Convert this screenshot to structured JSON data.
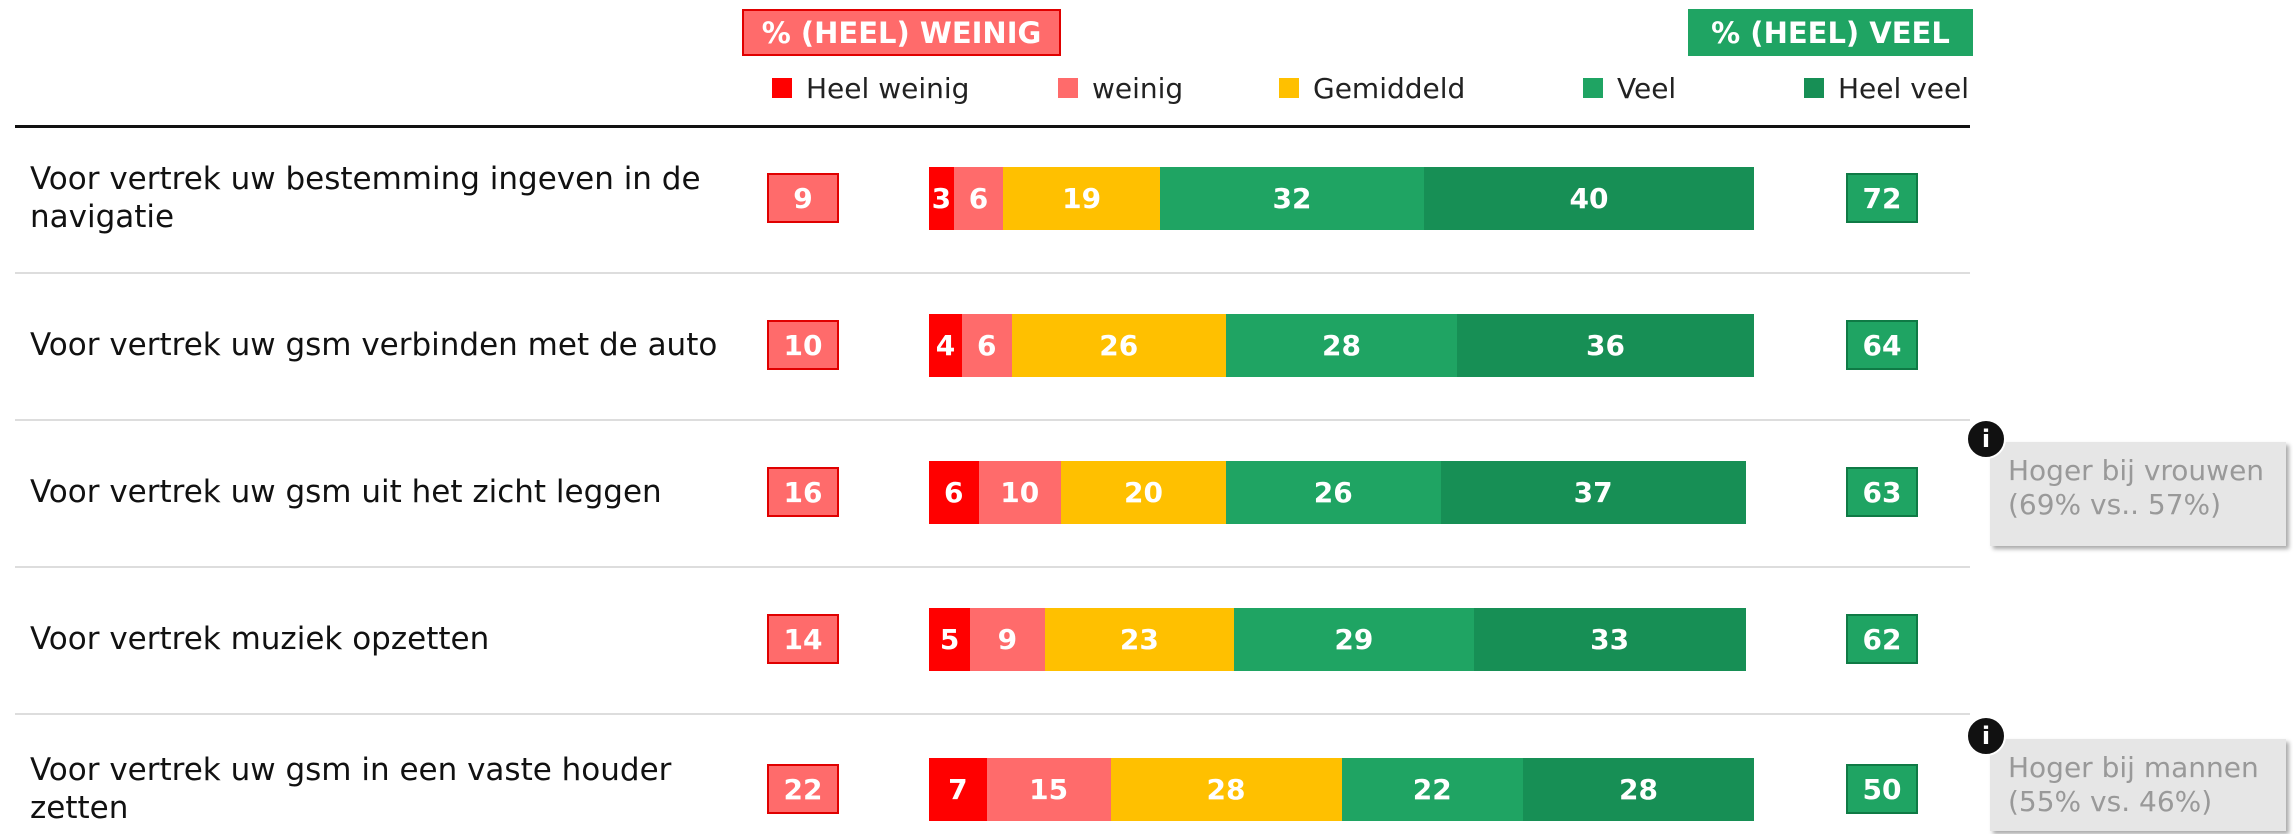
{
  "chart_data": {
    "type": "stacked-bar",
    "low_header": "% (HEEL) WEINIG",
    "high_header": "% (HEEL) VEEL",
    "categories": [
      "Voor vertrek uw bestemming ingeven in de navigatie",
      "Voor vertrek uw gsm verbinden met de auto",
      "Voor vertrek uw gsm uit het zicht leggen",
      "Voor vertrek muziek opzetten",
      "Voor vertrek uw gsm in een vaste houder zetten"
    ],
    "xlim": [
      0,
      100
    ],
    "series": [
      {
        "name": "Heel weinig",
        "color": "#ff0000",
        "values": [
          3,
          4,
          6,
          5,
          7
        ]
      },
      {
        "name": "weinig",
        "color": "#ff6b6b",
        "values": [
          6,
          6,
          10,
          9,
          15
        ]
      },
      {
        "name": "Gemiddeld",
        "color": "#ffc000",
        "values": [
          19,
          26,
          20,
          23,
          28
        ]
      },
      {
        "name": "Veel",
        "color": "#1fa463",
        "values": [
          32,
          28,
          26,
          29,
          22
        ]
      },
      {
        "name": "Heel veel",
        "color": "#178f55",
        "values": [
          40,
          36,
          37,
          33,
          28
        ]
      }
    ],
    "low_totals": {
      "color": "#ff6b6b",
      "values": [
        9,
        10,
        16,
        14,
        22
      ]
    },
    "high_totals": {
      "color": "#1fa463",
      "values": [
        72,
        64,
        63,
        62,
        50
      ]
    },
    "notes": [
      {
        "icon": "i",
        "lines": [
          "Hoger bij vrouwen",
          "(69% vs.. 57%)"
        ]
      },
      {
        "icon": "i",
        "lines": [
          "Hoger bij mannen",
          "(55% vs. 46%)"
        ]
      }
    ]
  }
}
